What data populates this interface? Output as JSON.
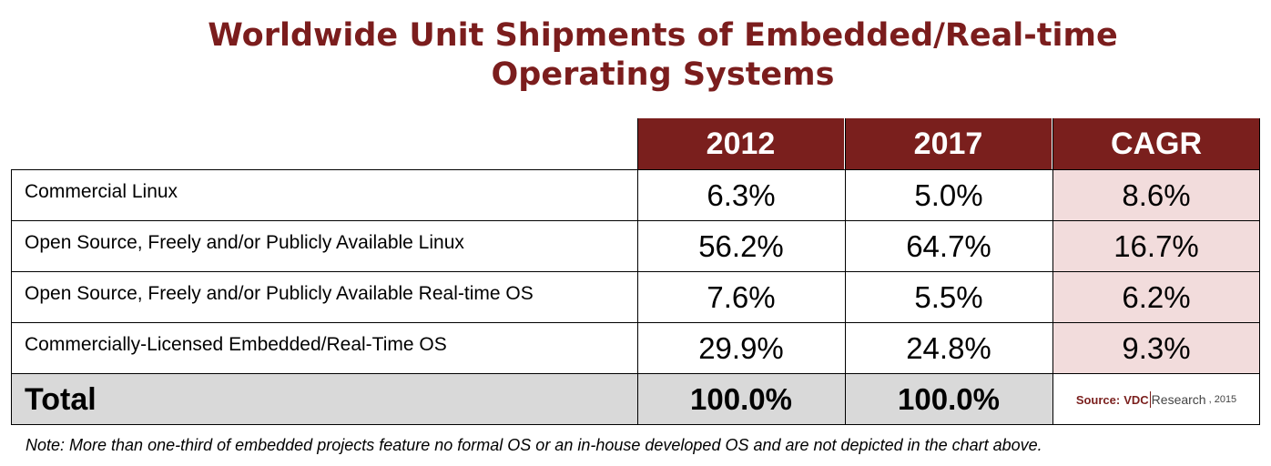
{
  "title_line1": "Worldwide Unit Shipments of Embedded/Real-time",
  "title_line2": "Operating Systems",
  "chart_data": {
    "type": "table",
    "title": "Worldwide Unit Shipments of Embedded/Real-time Operating Systems",
    "columns": [
      "2012",
      "2017",
      "CAGR"
    ],
    "rows": [
      {
        "label": "Commercial Linux",
        "values": [
          "6.3%",
          "5.0%",
          "8.6%"
        ]
      },
      {
        "label": "Open Source, Freely and/or Publicly Available Linux",
        "values": [
          "56.2%",
          "64.7%",
          "16.7%"
        ]
      },
      {
        "label": "Open Source, Freely and/or Publicly Available Real-time OS",
        "values": [
          "7.6%",
          "5.5%",
          "6.2%"
        ]
      },
      {
        "label": "Commercially-Licensed Embedded/Real-Time OS",
        "values": [
          "29.9%",
          "24.8%",
          "9.3%"
        ]
      }
    ],
    "total": {
      "label": "Total",
      "values": [
        "100.0%",
        "100.0%"
      ]
    }
  },
  "source": {
    "label": "Source:",
    "brand": "VDC",
    "rest": "Research",
    "year": ", 2015"
  },
  "note": "Note: More than one-third of embedded projects feature no formal OS or an in-house developed OS and are not depicted in the chart above.",
  "colors": {
    "header_bg": "#7a1f1d",
    "title": "#7b1d1d",
    "cagr_bg": "#f2dcdc",
    "total_bg": "#d9d9d9"
  }
}
